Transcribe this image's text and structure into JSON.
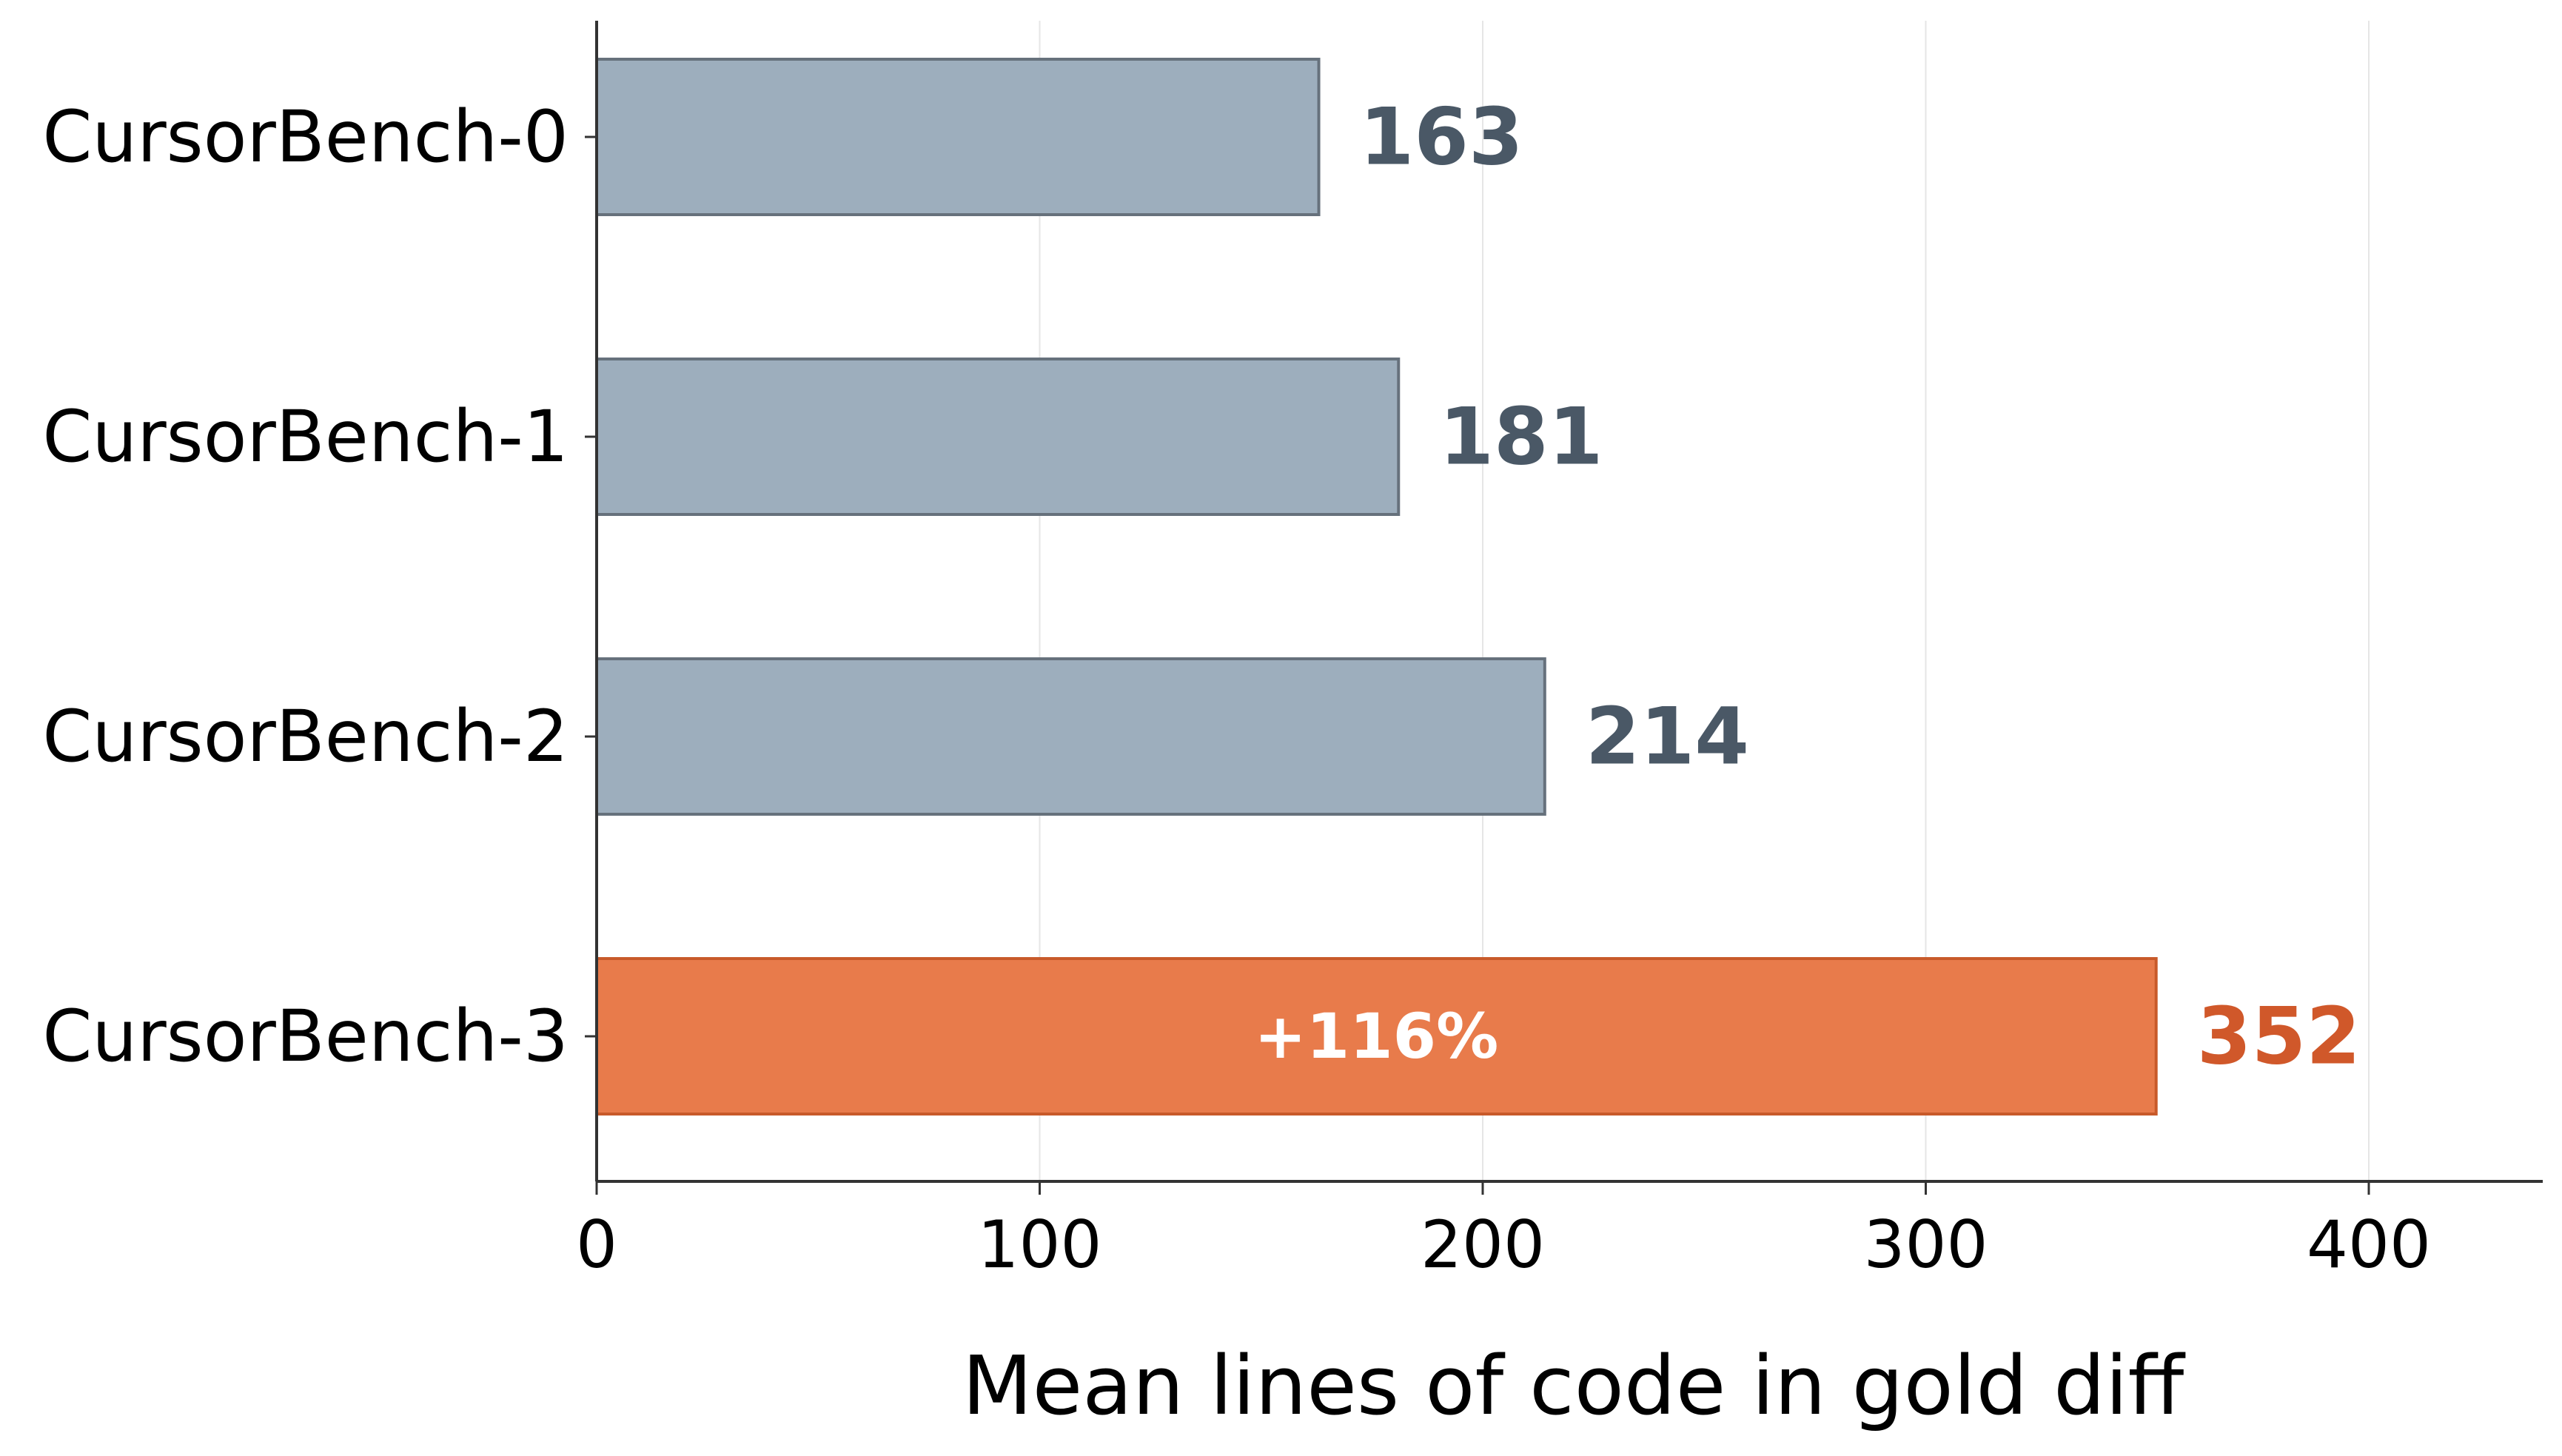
{
  "chart_data": {
    "type": "bar",
    "orientation": "horizontal",
    "title": "",
    "xlabel": "Mean lines of code in gold diff",
    "ylabel": "",
    "categories": [
      "CursorBench-0",
      "CursorBench-1",
      "CursorBench-2",
      "CursorBench-3"
    ],
    "values": [
      163,
      181,
      214,
      352
    ],
    "value_labels": [
      "163",
      "181",
      "214",
      "352"
    ],
    "annotations": [
      {
        "category": "CursorBench-3",
        "text": "+116%",
        "position": "inside-bar"
      }
    ],
    "xlim": [
      0,
      440
    ],
    "xticks": [
      0,
      100,
      200,
      300,
      400
    ],
    "xtick_labels": [
      "0",
      "100",
      "200",
      "300",
      "400"
    ],
    "grid": "vertical",
    "legend": "none",
    "colors": {
      "default_bar": "#9daebd",
      "default_bar_edge": "#66717c",
      "default_value_text": "#4a5866",
      "highlight_bar": "#e87b4b",
      "highlight_bar_edge": "#c85a2a",
      "highlight_value_text": "#d0582a",
      "axis": "#333333",
      "grid": "#e6e6e6"
    },
    "highlight_index": 3
  }
}
